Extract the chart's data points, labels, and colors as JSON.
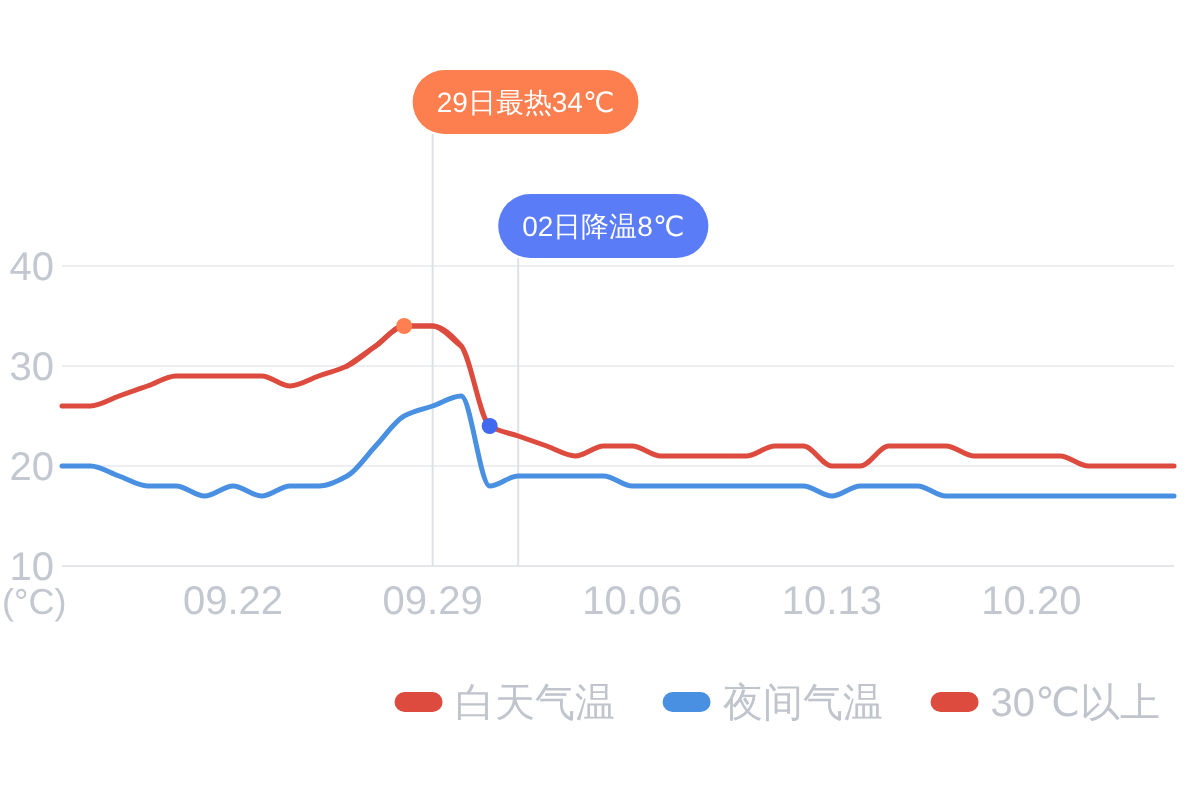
{
  "chart_data": {
    "type": "line",
    "x": [
      "--09-16",
      "--09-17",
      "--09-18",
      "--09-19",
      "--09-20",
      "--09-21",
      "--09-22",
      "--09-23",
      "--09-24",
      "--09-25",
      "--09-26",
      "--09-27",
      "--09-28",
      "--09-29",
      "--09-30",
      "--10-01",
      "--10-02",
      "--10-03",
      "--10-04",
      "--10-05",
      "--10-06",
      "--10-07",
      "--10-08",
      "--10-09",
      "--10-10",
      "--10-11",
      "--10-12",
      "--10-13",
      "--10-14",
      "--10-15",
      "--10-16",
      "--10-17",
      "--10-18",
      "--10-19",
      "--10-20",
      "--10-21",
      "--10-22",
      "--10-23",
      "--10-24",
      "--10-25"
    ],
    "xlim": [
      "--09-16",
      "--10-25"
    ],
    "xticks": [
      {
        "value": "--09-22",
        "label": "09.22"
      },
      {
        "value": "--09-29",
        "label": "09.29"
      },
      {
        "value": "--10-06",
        "label": "10.06"
      },
      {
        "value": "--10-13",
        "label": "10.13"
      },
      {
        "value": "--10-20",
        "label": "10.20"
      }
    ],
    "ylim": [
      10,
      40
    ],
    "yticks": [
      10,
      20,
      30,
      40
    ],
    "ylabel": "(°C)",
    "grid": "y",
    "legend": "bottom right",
    "series": [
      {
        "name": "白天气温",
        "color": "#dd4b3e",
        "values": [
          26,
          26,
          27,
          28,
          29,
          29,
          29,
          29,
          28,
          29,
          30,
          32,
          34,
          34,
          32,
          24,
          23,
          22,
          21,
          22,
          22,
          21,
          21,
          21,
          21,
          22,
          22,
          20,
          20,
          22,
          22,
          22,
          21,
          21,
          21,
          21,
          20,
          20,
          20,
          20
        ]
      },
      {
        "name": "夜间气温",
        "color": "#4a90e2",
        "values": [
          20,
          20,
          19,
          18,
          18,
          17,
          18,
          17,
          18,
          18,
          19,
          22,
          25,
          26,
          27,
          18,
          19,
          19,
          19,
          19,
          18,
          18,
          18,
          18,
          18,
          18,
          18,
          17,
          18,
          18,
          18,
          17,
          17,
          17,
          17,
          17,
          17,
          17,
          17,
          17
        ]
      },
      {
        "name": "30℃以上",
        "color": "#dd4b3e",
        "values": [
          null,
          null,
          null,
          null,
          null,
          null,
          null,
          null,
          null,
          null,
          30,
          32,
          34,
          34,
          32,
          null,
          null,
          null,
          null,
          null,
          null,
          null,
          null,
          null,
          null,
          null,
          null,
          null,
          null,
          null,
          null,
          null,
          null,
          null,
          null,
          null,
          null,
          null,
          null,
          null
        ]
      },
      {
        "type": "scatter",
        "x": [
          "--09-28"
        ],
        "values": [
          34
        ],
        "color": "#ff7f50"
      },
      {
        "type": "scatter",
        "x": [
          "--10-01"
        ],
        "values": [
          24
        ],
        "color": "#4169f0"
      }
    ],
    "ref_lines": [
      {
        "axis": "x",
        "value": "--09-29",
        "label": "29日最热34℃",
        "color": "#dfe1e6"
      },
      {
        "axis": "x",
        "value": "--10-02",
        "label": "02日降温8℃",
        "color": "#dfe1e6"
      }
    ]
  }
}
